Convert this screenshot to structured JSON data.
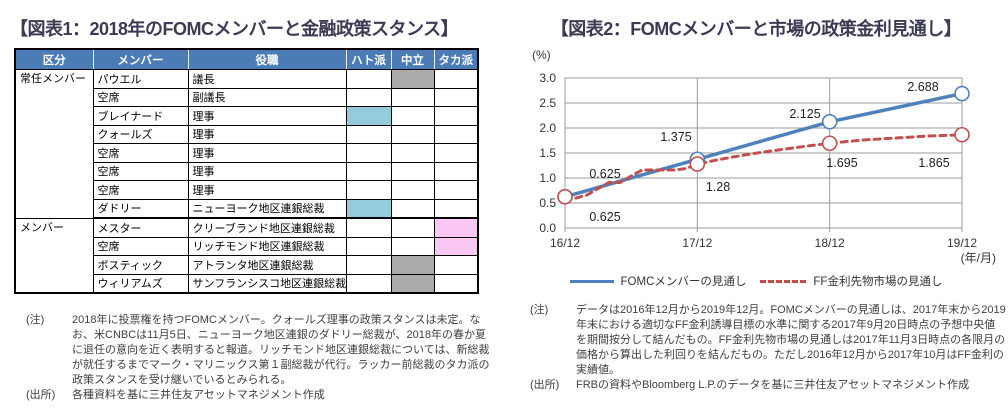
{
  "colors": {
    "title": "#3B3B54",
    "header_bg": "#4B7CB6",
    "header_text": "#FFFFFF",
    "dove": "#93CDDD",
    "neutral": "#ABABAB",
    "hawk": "#FBC7F3",
    "line_blue": "#4F81BD",
    "line_red": "#C0504D",
    "grid": "#9B9B9B",
    "note": "#3F3F3F"
  },
  "figure1": {
    "title": "【図表1：2018年のFOMCメンバーと金融政策スタンス】",
    "table": {
      "headers": [
        "区分",
        "メンバー",
        "役職",
        "ハト派",
        "中立",
        "タカ派"
      ],
      "groups": [
        {
          "label": "常任メンバー",
          "rowspan": 8
        },
        {
          "label": "メンバー",
          "rowspan": 4
        }
      ],
      "rows": [
        {
          "member": "パウエル",
          "role": "議長",
          "stance": "neutral"
        },
        {
          "member": "空席",
          "role": "副議長",
          "stance": ""
        },
        {
          "member": "ブレイナード",
          "role": "理事",
          "stance": "dove"
        },
        {
          "member": "クォールズ",
          "role": "理事",
          "stance": ""
        },
        {
          "member": "空席",
          "role": "理事",
          "stance": ""
        },
        {
          "member": "空席",
          "role": "理事",
          "stance": ""
        },
        {
          "member": "空席",
          "role": "理事",
          "stance": ""
        },
        {
          "member": "ダドリー",
          "role": "ニューヨーク地区連銀総裁",
          "stance": "dove"
        },
        {
          "member": "メスター",
          "role": "クリーブランド地区連銀総裁",
          "stance": "hawk"
        },
        {
          "member": "空席",
          "role": "リッチモンド地区連銀総裁",
          "stance": "hawk"
        },
        {
          "member": "ボスティック",
          "role": "アトランタ地区連銀総裁",
          "stance": "neutral"
        },
        {
          "member": "ウィリアムズ",
          "role": "サンフランシスコ地区連銀総裁",
          "stance": "neutral"
        }
      ]
    },
    "note_label": "(注)",
    "note": "2018年に投票権を持つFOMCメンバー。クォールズ理事の政策スタンスは未定。なお、米CNBCは11月5日、ニューヨーク地区連銀のダドリー総裁が、2018年の春か夏に退任の意向を近く表明すると報道。リッチモンド地区連銀総裁については、新総裁が就任するまでマーク・マリニックス第１副総裁が代行。ラッカー前総裁のタカ派の政策スタンスを受け継いでいるとみられる。",
    "source_label": "(出所)",
    "source": "各種資料を基に三井住友アセットマネジメント作成"
  },
  "figure2": {
    "title": "【図表2：FOMCメンバーと市場の政策金利見通し】",
    "note_label": "(注)",
    "note": "データは2016年12月から2019年12月。FOMCメンバーの見通しは、2017年末から2019年末における適切なFF金利誘導目標の水準に関する2017年9月20日時点の予想中央値を期間按分して結んだもの。FF金利先物市場の見通しは2017年11月3日時点の各限月の価格から算出した利回りを結んだもの。ただし2016年12月から2017年10月はFF金利の実績値。",
    "source_label": "(出所)",
    "source": "FRBの資料やBloomberg L.P.のデータを基に三井住友アセットマネジメント作成"
  },
  "chart_data": {
    "type": "line",
    "title": "【図表2：FOMCメンバーと市場の政策金利見通し】",
    "ylabel": "(%)",
    "xlabel": "(年/月)",
    "ylim": [
      0.0,
      3.0
    ],
    "ytick_step": 0.5,
    "ytick_labels": [
      "0.0",
      "0.5",
      "1.0",
      "1.5",
      "2.0",
      "2.5",
      "3.0"
    ],
    "x_ticks": [
      "16/12",
      "17/12",
      "18/12",
      "19/12"
    ],
    "x_tick_months": [
      0,
      12,
      24,
      36
    ],
    "grid": true,
    "legend_position": "bottom",
    "series": [
      {
        "name": "FOMCメンバーの見通し",
        "style": "solid",
        "x_months": [
          0,
          12,
          24,
          36
        ],
        "values": [
          0.625,
          1.375,
          2.125,
          2.688
        ],
        "labels": [
          "0.625",
          "1.375",
          "2.125",
          "2.688"
        ]
      },
      {
        "name": "FF金利先物市場の見通し",
        "style": "dashed",
        "x_months": [
          0,
          1,
          2,
          3,
          4,
          5,
          6,
          7,
          8,
          9,
          10,
          11,
          12,
          14,
          16,
          18,
          20,
          22,
          24,
          27,
          30,
          33,
          36
        ],
        "values": [
          0.625,
          0.6,
          0.66,
          0.79,
          0.91,
          0.91,
          1.04,
          1.16,
          1.16,
          1.16,
          1.16,
          1.19,
          1.28,
          1.37,
          1.45,
          1.52,
          1.58,
          1.64,
          1.695,
          1.76,
          1.8,
          1.84,
          1.865
        ],
        "marker_months": [
          0,
          12,
          24,
          36
        ],
        "marker_values": [
          0.625,
          1.28,
          1.695,
          1.865
        ],
        "labels": [
          "0.625",
          "1.28",
          "1.695",
          "1.865"
        ]
      }
    ]
  }
}
